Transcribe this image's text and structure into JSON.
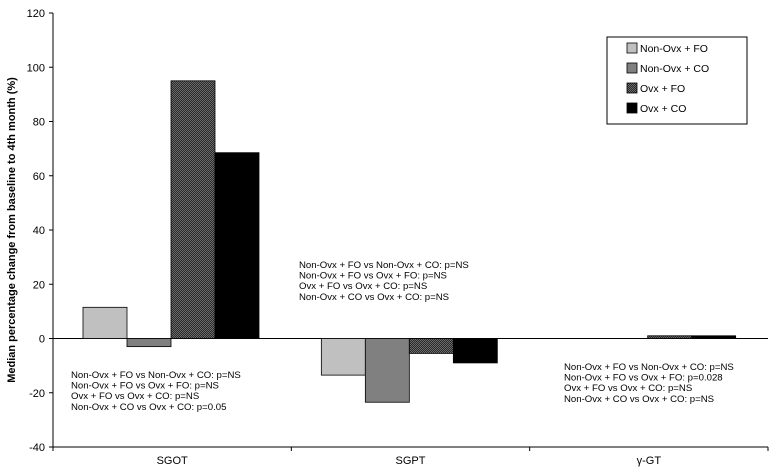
{
  "chart_data": {
    "type": "bar",
    "title": "",
    "xlabel": "",
    "ylabel": "Median percentage change from baseline to 4th month (%)",
    "ylim": [
      -40,
      120
    ],
    "yticks": [
      -40,
      -20,
      0,
      20,
      40,
      60,
      80,
      100,
      120
    ],
    "grid": false,
    "legend_position": "top-right",
    "categories": [
      "SGOT",
      "SGPT",
      "γ-GT"
    ],
    "series": [
      {
        "name": "Non-Ovx + FO",
        "values": [
          11.5,
          -13.5,
          0
        ],
        "color": "#c0c0c0",
        "pattern": "solid"
      },
      {
        "name": "Non-Ovx + CO",
        "values": [
          -3,
          -23.5,
          0
        ],
        "color": "#808080",
        "pattern": "solid"
      },
      {
        "name": "Ovx + FO",
        "values": [
          95,
          -5.5,
          1
        ],
        "color": "#333333",
        "pattern": "checker"
      },
      {
        "name": "Ovx + CO",
        "values": [
          68.5,
          -9,
          1
        ],
        "color": "#000000",
        "pattern": "solid"
      }
    ],
    "annotations": [
      {
        "category": "SGOT",
        "lines": [
          "Non-Ovx + FO vs Non-Ovx + CO: p=NS",
          "Non-Ovx + FO  vs Ovx + FO: p=NS",
          "Ovx + FO vs Ovx + CO: p=NS",
          "Non-Ovx + CO vs Ovx + CO: p=0.05"
        ]
      },
      {
        "category": "SGPT",
        "lines": [
          "Non-Ovx + FO vs Non-Ovx + CO: p=NS",
          "Non-Ovx + FO  vs Ovx + FO: p=NS",
          "Ovx + FO vs Ovx + CO: p=NS",
          "Non-Ovx + CO vs Ovx + CO: p=NS"
        ]
      },
      {
        "category": "γ-GT",
        "lines": [
          "Non-Ovx + FO vs Non-Ovx + CO: p=NS",
          "Non-Ovx + FO  vs Ovx + FO: p=0.028",
          "Ovx + FO vs Ovx + CO: p=NS",
          "Non-Ovx + CO vs Ovx + CO: p=NS"
        ]
      }
    ]
  }
}
